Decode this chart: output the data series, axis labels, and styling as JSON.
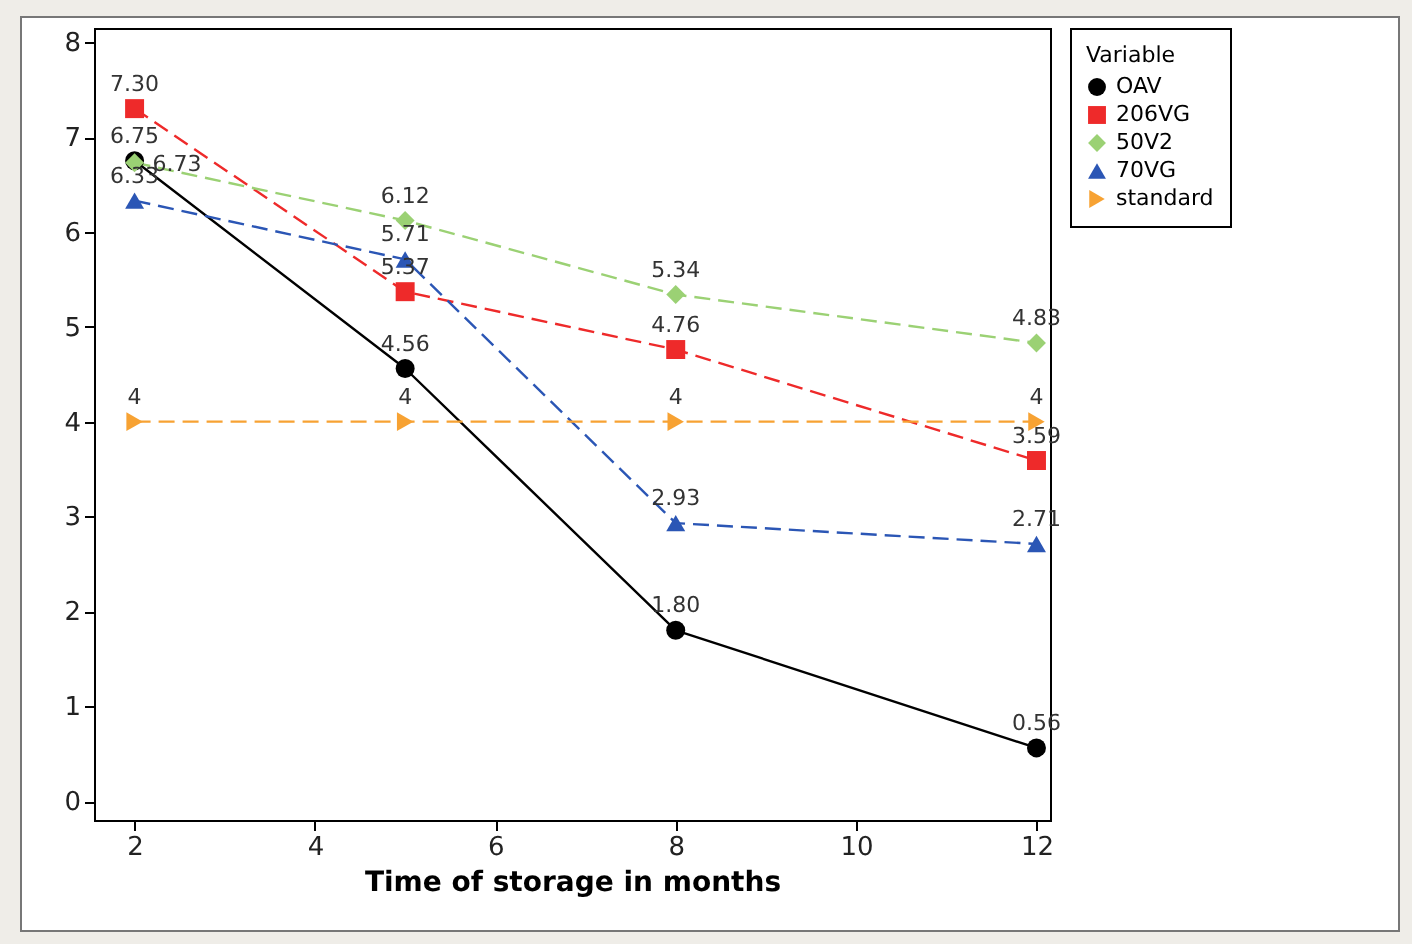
{
  "chart_data": {
    "type": "line",
    "xlabel": "Time of storage in months",
    "legend_title": "Variable",
    "legend": "right",
    "grid": false,
    "x": [
      2,
      5,
      8,
      12
    ],
    "xlim": [
      1.55,
      12.15
    ],
    "xticks": [
      2,
      4,
      6,
      8,
      10,
      12
    ],
    "ylim": [
      -0.2,
      8.15
    ],
    "yticks": [
      0,
      1,
      2,
      3,
      4,
      5,
      6,
      7,
      8
    ],
    "series": [
      {
        "name": "OAV",
        "color": "#000000",
        "marker": "circle",
        "line_style": "solid",
        "values": [
          6.75,
          4.56,
          1.8,
          0.56
        ],
        "value_labels": [
          "6.75",
          "4.56",
          "1.80",
          "0.56"
        ]
      },
      {
        "name": "206VG",
        "color": "#ee2a2a",
        "marker": "square",
        "line_style": "dashed",
        "values": [
          7.3,
          5.37,
          4.76,
          3.59
        ],
        "value_labels": [
          "7.30",
          "5.37",
          "4.76",
          "3.59"
        ]
      },
      {
        "name": "50V2",
        "color": "#9bd174",
        "marker": "diamond",
        "line_style": "dashed",
        "values": [
          6.73,
          6.12,
          5.34,
          4.83
        ],
        "value_labels": [
          "6.73",
          "6.12",
          "5.34",
          "4.83"
        ]
      },
      {
        "name": "70VG",
        "color": "#2b56b5",
        "marker": "triangle",
        "line_style": "dashed",
        "values": [
          6.33,
          5.71,
          2.93,
          2.71
        ],
        "value_labels": [
          "6.33",
          "5.71",
          "2.93",
          "2.71"
        ]
      },
      {
        "name": "standard",
        "color": "#f7a233",
        "marker": "triangle-right",
        "line_style": "dashed",
        "values": [
          4,
          4,
          4,
          4
        ],
        "value_labels": [
          "4",
          "4",
          "4",
          "4"
        ]
      }
    ]
  }
}
